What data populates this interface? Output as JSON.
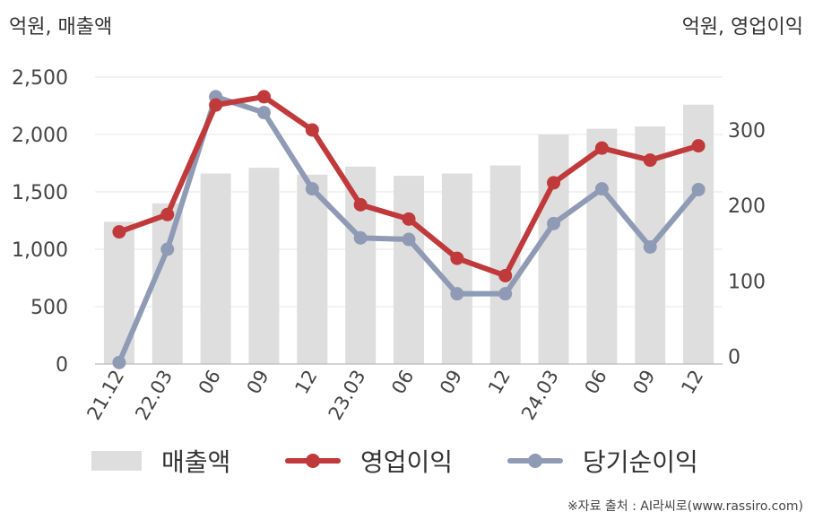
{
  "units": {
    "left": "억원, 매출액",
    "right": "억원, 영업이익"
  },
  "chart_data": {
    "type": "bar+line",
    "categories": [
      "21.12",
      "22.03",
      "06",
      "09",
      "12",
      "23.03",
      "06",
      "09",
      "12",
      "24.03",
      "06",
      "09",
      "12"
    ],
    "y_left": {
      "ticks": [
        "0",
        "500",
        "1,000",
        "1,500",
        "2,000",
        "2,500"
      ],
      "ylim": [
        0,
        2500
      ]
    },
    "y_right": {
      "ticks": [
        "0",
        "100",
        "200",
        "300"
      ],
      "ylim": [
        -10,
        370
      ]
    },
    "series": [
      {
        "name": "매출액",
        "type": "bar",
        "axis": "left",
        "color": "#dedede",
        "values": [
          1240,
          1400,
          1660,
          1710,
          1650,
          1720,
          1640,
          1660,
          1730,
          2000,
          2050,
          2070,
          2260
        ]
      },
      {
        "name": "영업이익",
        "type": "line",
        "axis": "right",
        "color": "#c0393b",
        "values": [
          165,
          188,
          333,
          344,
          300,
          201,
          182,
          130,
          107,
          230,
          276,
          260,
          279
        ]
      },
      {
        "name": "당기순이익",
        "type": "line",
        "axis": "right",
        "color": "#8f9bb5",
        "values": [
          -8,
          142,
          344,
          323,
          222,
          157,
          155,
          83,
          83,
          176,
          222,
          145,
          221
        ]
      }
    ],
    "grid": true,
    "legend_position": "bottom"
  },
  "legend": [
    {
      "label": "매출액"
    },
    {
      "label": "영업이익"
    },
    {
      "label": "당기순이익"
    }
  ],
  "source": "※자료 출처 : AI라씨로(www.rassiro.com)"
}
